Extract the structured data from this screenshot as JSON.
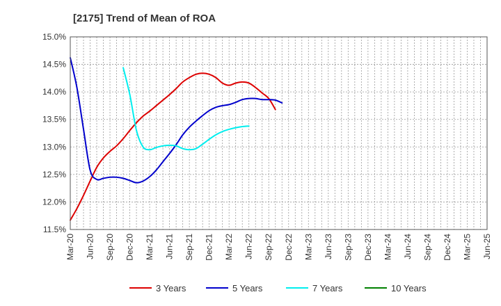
{
  "chart_data": {
    "type": "line",
    "title": "[2175]  Trend of Mean of ROA",
    "xlabel": "",
    "ylabel": "",
    "y_tick_labels": [
      "11.5%",
      "12.0%",
      "12.5%",
      "13.0%",
      "13.5%",
      "14.0%",
      "14.5%",
      "15.0%"
    ],
    "ylim": [
      11.5,
      15.0
    ],
    "x_tick_labels": [
      "Mar-20",
      "Jun-20",
      "Sep-20",
      "Dec-20",
      "Mar-21",
      "Jun-21",
      "Sep-21",
      "Dec-21",
      "Mar-22",
      "Jun-22",
      "Sep-22",
      "Dec-22",
      "Mar-23",
      "Jun-23",
      "Sep-23",
      "Dec-23",
      "Mar-24",
      "Jun-24",
      "Sep-24",
      "Dec-24",
      "Mar-25",
      "Jun-25"
    ],
    "grid": true,
    "legend_position": "bottom",
    "series": [
      {
        "name": "3 Years",
        "color": "#dd0000",
        "points": [
          [
            0,
            11.67
          ],
          [
            1,
            11.88
          ],
          [
            2,
            12.12
          ],
          [
            3,
            12.38
          ],
          [
            4,
            12.63
          ],
          [
            5,
            12.8
          ],
          [
            6,
            12.92
          ],
          [
            7,
            13.02
          ],
          [
            8,
            13.15
          ],
          [
            9,
            13.3
          ],
          [
            10,
            13.44
          ],
          [
            11,
            13.56
          ],
          [
            12,
            13.65
          ],
          [
            13,
            13.75
          ],
          [
            14,
            13.85
          ],
          [
            15,
            13.95
          ],
          [
            16,
            14.06
          ],
          [
            17,
            14.18
          ],
          [
            18,
            14.26
          ],
          [
            19,
            14.32
          ],
          [
            20,
            14.34
          ],
          [
            21,
            14.32
          ],
          [
            22,
            14.26
          ],
          [
            23,
            14.16
          ],
          [
            24,
            14.12
          ],
          [
            25,
            14.16
          ],
          [
            26,
            14.18
          ],
          [
            27,
            14.16
          ],
          [
            28,
            14.08
          ],
          [
            29,
            13.98
          ],
          [
            30,
            13.88
          ],
          [
            31,
            13.68
          ]
        ]
      },
      {
        "name": "5 Years",
        "color": "#0000cc",
        "points": [
          [
            0,
            14.62
          ],
          [
            1,
            14.08
          ],
          [
            2,
            13.32
          ],
          [
            3,
            12.58
          ],
          [
            4,
            12.41
          ],
          [
            5,
            12.43
          ],
          [
            6,
            12.45
          ],
          [
            7,
            12.45
          ],
          [
            8,
            12.43
          ],
          [
            9,
            12.39
          ],
          [
            10,
            12.35
          ],
          [
            11,
            12.38
          ],
          [
            12,
            12.46
          ],
          [
            13,
            12.58
          ],
          [
            14,
            12.73
          ],
          [
            15,
            12.88
          ],
          [
            16,
            13.04
          ],
          [
            17,
            13.22
          ],
          [
            18,
            13.36
          ],
          [
            19,
            13.47
          ],
          [
            20,
            13.57
          ],
          [
            21,
            13.66
          ],
          [
            22,
            13.72
          ],
          [
            23,
            13.75
          ],
          [
            24,
            13.77
          ],
          [
            25,
            13.81
          ],
          [
            26,
            13.86
          ],
          [
            27,
            13.88
          ],
          [
            28,
            13.88
          ],
          [
            29,
            13.86
          ],
          [
            30,
            13.86
          ],
          [
            31,
            13.85
          ],
          [
            32,
            13.8
          ]
        ]
      },
      {
        "name": "7 Years",
        "color": "#00eeee",
        "points": [
          [
            8,
            14.44
          ],
          [
            9,
            13.95
          ],
          [
            10,
            13.3
          ],
          [
            11,
            13.0
          ],
          [
            12,
            12.95
          ],
          [
            13,
            12.99
          ],
          [
            14,
            13.02
          ],
          [
            15,
            13.03
          ],
          [
            16,
            13.02
          ],
          [
            17,
            12.97
          ],
          [
            18,
            12.95
          ],
          [
            19,
            12.97
          ],
          [
            20,
            13.05
          ],
          [
            21,
            13.14
          ],
          [
            22,
            13.22
          ],
          [
            23,
            13.28
          ],
          [
            24,
            13.32
          ],
          [
            25,
            13.35
          ],
          [
            26,
            13.37
          ],
          [
            27,
            13.38
          ]
        ]
      },
      {
        "name": "10 Years",
        "color": "#008000",
        "points": []
      }
    ]
  }
}
